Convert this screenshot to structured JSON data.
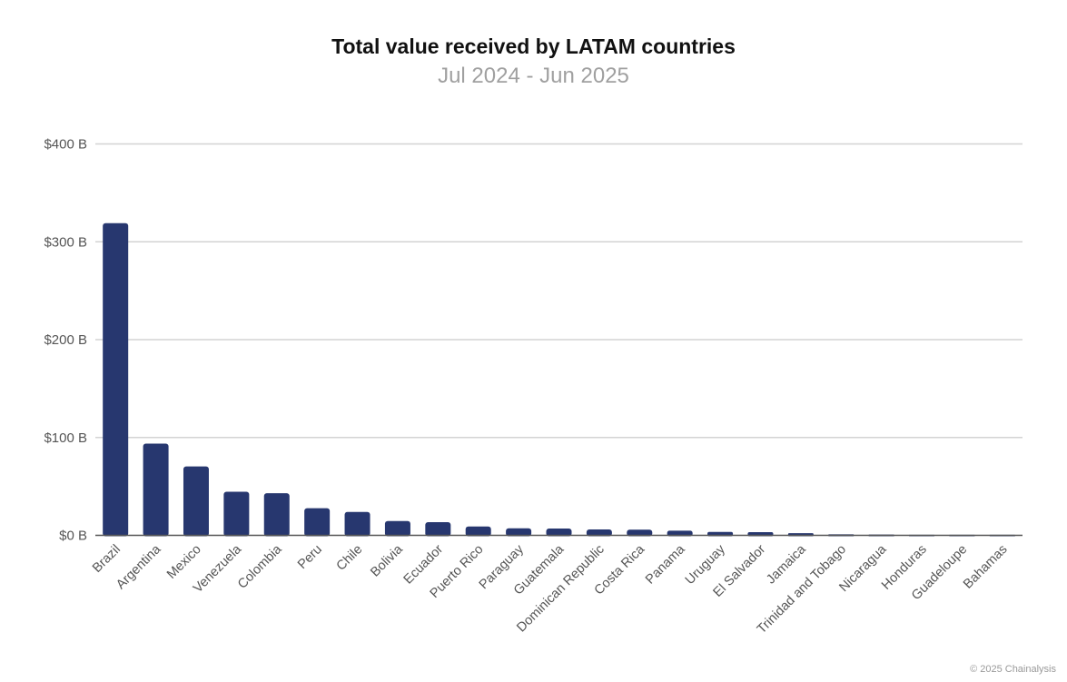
{
  "chart_data": {
    "type": "bar",
    "title": "Total value received by LATAM countries",
    "subtitle": "Jul 2024 - Jun 2025",
    "xlabel": "",
    "ylabel": "",
    "ylim": [
      0,
      400
    ],
    "yticks": [
      0,
      100,
      200,
      300,
      400
    ],
    "ytick_labels": [
      "$0 B",
      "$100 B",
      "$200 B",
      "$300 B",
      "$400 B"
    ],
    "grid": true,
    "categories": [
      "Brazil",
      "Argentina",
      "Mexico",
      "Venezuela",
      "Colombia",
      "Peru",
      "Chile",
      "Bolivia",
      "Ecuador",
      "Puerto Rico",
      "Paraguay",
      "Guatemala",
      "Dominican Republic",
      "Costa Rica",
      "Panama",
      "Uruguay",
      "El Salvador",
      "Jamaica",
      "Trinidad and Tobago",
      "Nicaragua",
      "Honduras",
      "Guadeloupe",
      "Bahamas"
    ],
    "values": [
      319,
      93.7,
      70.4,
      44.5,
      43,
      27.7,
      23.9,
      14.6,
      13.5,
      9,
      7.2,
      7,
      6,
      5.8,
      4.7,
      3.5,
      3.3,
      2.2,
      1,
      0.8,
      0.6,
      0.2,
      0.1
    ],
    "bar_color": "#27376f",
    "unit": "USD billions"
  },
  "footer": {
    "credit": "© 2025 Chainalysis"
  }
}
